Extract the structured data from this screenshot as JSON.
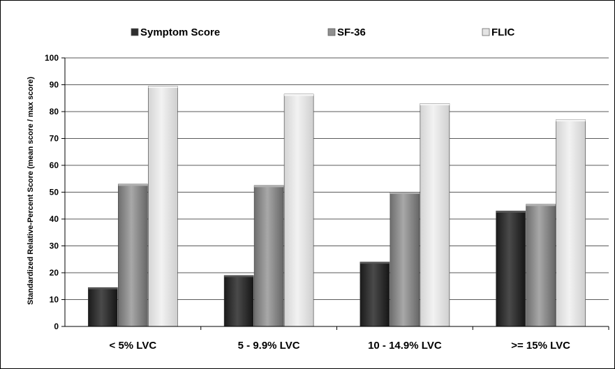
{
  "chart_data": {
    "type": "bar",
    "categories": [
      "< 5% LVC",
      "5 - 9.9% LVC",
      "10 - 14.9% LVC",
      ">= 15% LVC"
    ],
    "series": [
      {
        "name": "Symptom Score",
        "values": [
          14.5,
          19,
          24,
          43
        ],
        "color": "#2e2e2e"
      },
      {
        "name": "SF-36",
        "values": [
          53,
          52.5,
          50,
          45.5
        ],
        "color": "#8a8a8a"
      },
      {
        "name": "FLIC",
        "values": [
          89.5,
          86.5,
          83,
          77
        ],
        "color": "#e2e2e2"
      }
    ],
    "ylabel": "Standardized Relative-Percent Score (mean score / max score)",
    "xlabel": "",
    "ylim": [
      0,
      100
    ],
    "yticks": [
      0,
      10,
      20,
      30,
      40,
      50,
      60,
      70,
      80,
      90,
      100
    ],
    "grid": true,
    "legend_position": "top"
  }
}
